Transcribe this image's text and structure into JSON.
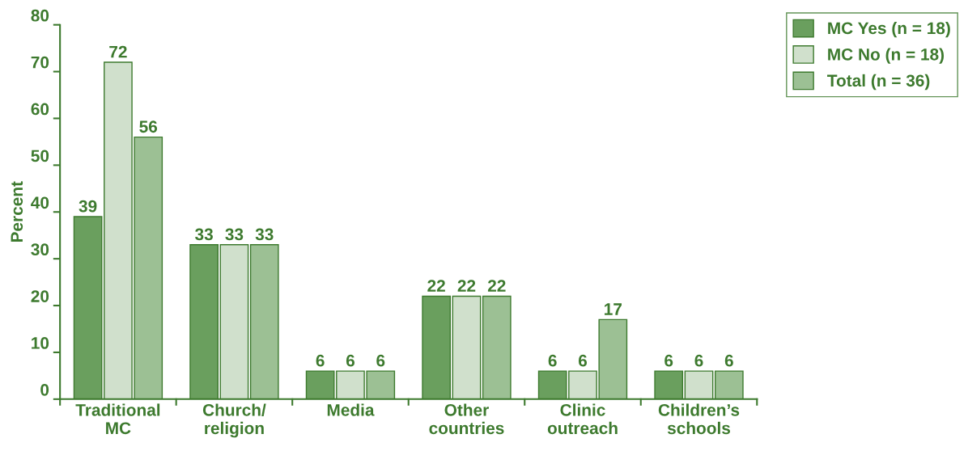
{
  "chart_data": {
    "type": "bar",
    "ylabel": "Percent",
    "categories": [
      "Traditional\nMC",
      "Church/\nreligion",
      "Media",
      "Other\ncountries",
      "Clinic\noutreach",
      "Children’s\nschools"
    ],
    "series": [
      {
        "name": "MC Yes (n = 18)",
        "color": "#6a9f5e",
        "values": [
          39,
          33,
          6,
          22,
          6,
          6
        ]
      },
      {
        "name": "MC No (n = 18)",
        "color": "#d0e0cc",
        "values": [
          72,
          33,
          6,
          22,
          6,
          6
        ]
      },
      {
        "name": "Total (n = 36)",
        "color": "#9cc094",
        "values": [
          56,
          33,
          6,
          22,
          17,
          6
        ]
      }
    ],
    "ylim": [
      0,
      80
    ],
    "yticks": [
      0,
      10,
      20,
      30,
      40,
      50,
      60,
      70,
      80
    ],
    "data_labels": true,
    "grid": false,
    "legend": "top right"
  }
}
